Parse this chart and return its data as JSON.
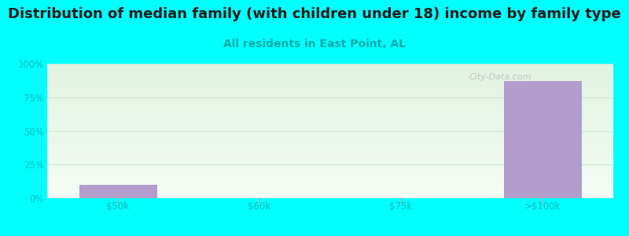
{
  "title": "Distribution of median family (with children under 18) income by family type",
  "subtitle": "All residents in East Point, AL",
  "title_fontsize": 13,
  "subtitle_fontsize": 10,
  "title_color": "#1a1a1a",
  "subtitle_color": "#00aaaa",
  "background_color": "#00ffff",
  "bar_color": "#b39dcc",
  "categories": [
    "$50k",
    "$60k",
    "$75k",
    ">$100k"
  ],
  "values": [
    10.0,
    0,
    0,
    87.0
  ],
  "ylim": [
    0,
    100
  ],
  "yticks": [
    0,
    25,
    50,
    75,
    100
  ],
  "ytick_labels": [
    "0%",
    "25%",
    "50%",
    "75%",
    "100%"
  ],
  "grid_color": "#c8e8c8",
  "axis_color": "#aaaaaa",
  "tick_color": "#00bbbb",
  "watermark": "City-Data.com"
}
